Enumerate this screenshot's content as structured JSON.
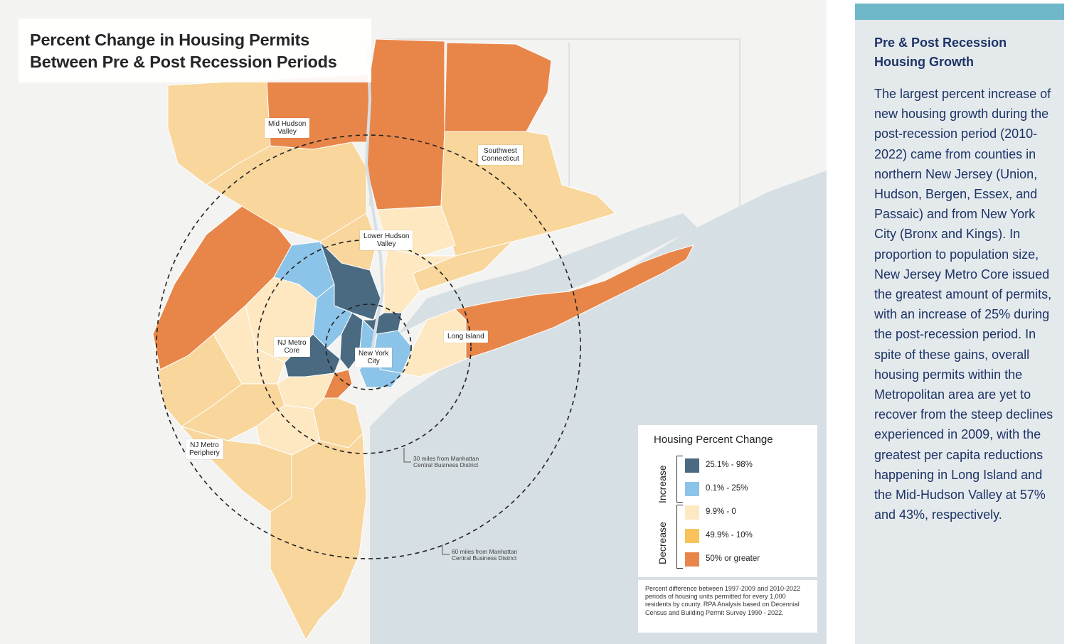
{
  "map": {
    "title_line1": "Percent Change in Housing Permits",
    "title_line2": "Between Pre & Post Recession Periods",
    "regions": [
      {
        "id": "mid-hudson-valley",
        "line1": "Mid Hudson",
        "line2": "Valley"
      },
      {
        "id": "southwest-connecticut",
        "line1": "Southwest",
        "line2": "Connecticut"
      },
      {
        "id": "lower-hudson-valley",
        "line1": "Lower Hudson",
        "line2": "Valley"
      },
      {
        "id": "nj-metro-core",
        "line1": "NJ Metro",
        "line2": "Core"
      },
      {
        "id": "new-york-city",
        "line1": "New York",
        "line2": "City"
      },
      {
        "id": "long-island",
        "line1": "Long Island",
        "line2": ""
      },
      {
        "id": "nj-metro-periphery",
        "line1": "NJ Metro",
        "line2": "Periphery"
      }
    ],
    "circle_30_line1": "30 miles from Manhattan",
    "circle_30_line2": "Central Business District",
    "circle_60_line1": "60 miles from Manhattan",
    "circle_60_line2": "Central Business District"
  },
  "legend": {
    "title": "Housing Percent Change",
    "increase_label": "Increase",
    "decrease_label": "Decrease",
    "items": [
      {
        "label": "25.1% - 98%",
        "color": "#4a6a82"
      },
      {
        "label": "0.1% - 25%",
        "color": "#8cc3e8"
      },
      {
        "label": "9.9% - 0",
        "color": "#fde8c2"
      },
      {
        "label": "49.9% - 10%",
        "color": "#f9c25a"
      },
      {
        "label": "50% or greater",
        "color": "#e8864a"
      }
    ]
  },
  "note": "Percent difference between 1997-2009 and 2010-2022 periods of housing units permitted for every 1,000 residents by county. RPA Analysis based on Decennial Census and Building Permit Survey 1990 - 2022.",
  "sidebar": {
    "heading": "Pre & Post Recession Housing Growth",
    "body": "The largest percent increase of new housing growth during the post-recession period (2010-2022) came from counties in northern New Jersey (Union, Hudson, Bergen, Essex, and Passaic) and from New York City (Bronx and Kings). In proportion to population size, New Jersey Metro Core issued the greatest amount of permits, with an increase of 25% during the post-recession period. In spite of these gains, overall housing permits within the Metropolitan area are yet to recover from the steep declines experienced in 2009, with the greatest per capita reductions happening in Long Island and the Mid-Hudson Valley at 57% and 43%, respectively."
  },
  "colors": {
    "water": "#d6dfe3",
    "land": "#f3f3f2",
    "dark_blue": "#4a6a82",
    "light_blue": "#8cc3e8",
    "pale": "#fde8c2",
    "tan": "#f8d69c",
    "orange": "#e8864a",
    "sidebar_bg": "#e4e9ec",
    "sidebar_accent": "#6fb8ca",
    "sidebar_text": "#1d3466"
  }
}
